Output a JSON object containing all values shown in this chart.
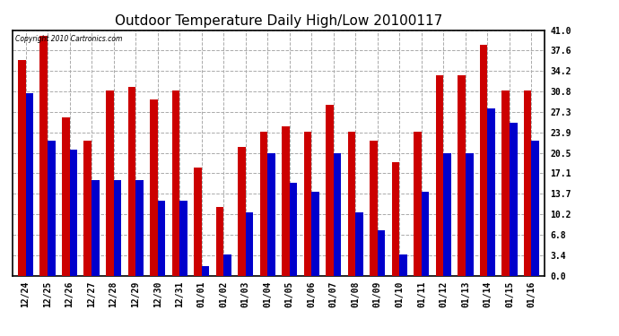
{
  "title": "Outdoor Temperature Daily High/Low 20100117",
  "copyright": "Copyright 2010 Cartronics.com",
  "dates": [
    "12/24",
    "12/25",
    "12/26",
    "12/27",
    "12/28",
    "12/29",
    "12/30",
    "12/31",
    "01/01",
    "01/02",
    "01/03",
    "01/04",
    "01/05",
    "01/06",
    "01/07",
    "01/08",
    "01/09",
    "01/10",
    "01/11",
    "01/12",
    "01/13",
    "01/14",
    "01/15",
    "01/16"
  ],
  "highs": [
    36.0,
    40.0,
    26.5,
    22.5,
    31.0,
    31.5,
    29.5,
    31.0,
    18.0,
    11.5,
    21.5,
    24.0,
    25.0,
    24.0,
    28.5,
    24.0,
    22.5,
    19.0,
    24.0,
    33.5,
    33.5,
    38.5,
    31.0,
    31.0
  ],
  "lows": [
    30.5,
    22.5,
    21.0,
    16.0,
    16.0,
    16.0,
    12.5,
    12.5,
    1.5,
    3.5,
    10.5,
    20.5,
    15.5,
    14.0,
    20.5,
    10.5,
    7.5,
    3.5,
    14.0,
    20.5,
    20.5,
    28.0,
    25.5,
    22.5
  ],
  "bar_color_high": "#cc0000",
  "bar_color_low": "#0000cc",
  "yticks": [
    0.0,
    3.4,
    6.8,
    10.2,
    13.7,
    17.1,
    20.5,
    23.9,
    27.3,
    30.8,
    34.2,
    37.6,
    41.0
  ],
  "ylim": [
    0,
    41.0
  ],
  "background_color": "#ffffff",
  "plot_bg_color": "#ffffff",
  "grid_color": "#aaaaaa",
  "title_fontsize": 11,
  "bar_width": 0.35,
  "figwidth": 6.9,
  "figheight": 3.75,
  "dpi": 100
}
